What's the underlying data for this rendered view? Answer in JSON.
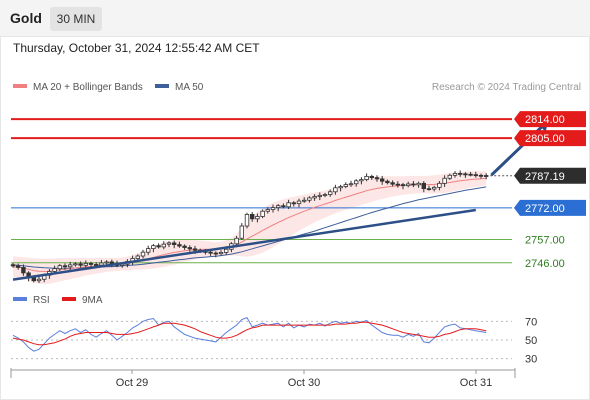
{
  "header": {
    "title": "Gold",
    "timeframe": "30 MIN"
  },
  "timestamp": "Thursday, October 31, 2024 12:55:42 AM CET",
  "legend": {
    "bollinger_label": "MA 20 + Bollinger Bands",
    "ma50_label": "MA 50",
    "copyright": "Research © 2024 Trading Central"
  },
  "rsi_legend": {
    "rsi_label": "RSI",
    "ma_label": "9MA"
  },
  "colors": {
    "resistance": "#e31b1b",
    "support_blue": "#2b6fd4",
    "support_green": "#6ab04c",
    "trend": "#2b4f86",
    "current_price_bg": "#2d2d2d",
    "bollinger_fill": "#fde6e6",
    "ma20": "#f08080",
    "ma50": "#3e5f9a",
    "candle": "#333333",
    "rsi": "#5b7fdc",
    "rsi_ma": "#e31b1b"
  },
  "chart_data": {
    "type": "candlestick",
    "instrument": "Gold",
    "timeframe": "30 MIN",
    "y_range": [
      2735,
      2824
    ],
    "levels": [
      {
        "value": 2814.0,
        "label": "2814.00",
        "kind": "resistance"
      },
      {
        "value": 2805.0,
        "label": "2805.00",
        "kind": "resistance"
      },
      {
        "value": 2787.19,
        "label": "2787.19",
        "kind": "current"
      },
      {
        "value": 2772.0,
        "label": "2772.00",
        "kind": "pivot"
      },
      {
        "value": 2757.0,
        "label": "2757.00",
        "kind": "support"
      },
      {
        "value": 2746.0,
        "label": "2746.00",
        "kind": "support"
      }
    ],
    "x_labels": [
      "Oct 29",
      "Oct 30",
      "Oct 31"
    ],
    "closes": [
      2744.5,
      2743.8,
      2741.2,
      2738.9,
      2737.5,
      2738.2,
      2740.1,
      2741.9,
      2743.2,
      2744.6,
      2744.1,
      2745.0,
      2745.5,
      2744.8,
      2745.7,
      2745.2,
      2744.9,
      2745.9,
      2746.4,
      2745.6,
      2744.7,
      2745.3,
      2746.6,
      2748.0,
      2749.2,
      2751.0,
      2752.7,
      2754.1,
      2753.5,
      2754.8,
      2755.4,
      2754.6,
      2753.9,
      2753.2,
      2752.6,
      2751.9,
      2751.4,
      2751.0,
      2750.6,
      2750.3,
      2750.9,
      2752.4,
      2755.0,
      2757.6,
      2763.4,
      2768.9,
      2766.8,
      2767.9,
      2770.4,
      2771.2,
      2772.1,
      2773.0,
      2772.5,
      2774.4,
      2774.0,
      2775.2,
      2775.6,
      2776.7,
      2777.4,
      2777.9,
      2778.3,
      2779.6,
      2781.5,
      2782.1,
      2783.0,
      2783.4,
      2784.8,
      2785.4,
      2786.9,
      2786.3,
      2785.7,
      2784.6,
      2783.9,
      2783.2,
      2783.0,
      2782.5,
      2783.3,
      2782.9,
      2783.6,
      2781.1,
      2780.9,
      2781.7,
      2783.6,
      2786.0,
      2787.4,
      2788.3,
      2788.1,
      2787.9,
      2787.7,
      2787.4,
      2787.3,
      2787.19
    ],
    "ma20": [
      2744.0,
      2743.9,
      2743.5,
      2742.9,
      2742.3,
      2742.0,
      2741.9,
      2742.0,
      2742.3,
      2742.7,
      2742.9,
      2743.2,
      2743.5,
      2743.8,
      2744.1,
      2744.3,
      2744.5,
      2744.8,
      2745.0,
      2745.1,
      2745.2,
      2745.4,
      2745.7,
      2746.1,
      2746.6,
      2747.2,
      2747.9,
      2748.6,
      2749.2,
      2749.8,
      2750.4,
      2750.9,
      2751.3,
      2751.7,
      2752.0,
      2752.2,
      2752.3,
      2752.4,
      2752.4,
      2752.4,
      2752.6,
      2753.0,
      2753.6,
      2754.5,
      2755.8,
      2757.3,
      2758.6,
      2759.9,
      2761.3,
      2762.6,
      2763.9,
      2765.1,
      2766.2,
      2767.4,
      2768.4,
      2769.4,
      2770.4,
      2771.3,
      2772.2,
      2773.0,
      2773.8,
      2774.6,
      2775.5,
      2776.3,
      2777.1,
      2777.8,
      2778.6,
      2779.3,
      2780.1,
      2780.7,
      2781.2,
      2781.6,
      2781.9,
      2782.2,
      2782.4,
      2782.6,
      2782.8,
      2782.9,
      2783.0,
      2783.0,
      2783.0,
      2783.1,
      2783.3,
      2783.6,
      2784.0,
      2784.4,
      2784.8,
      2785.1,
      2785.4,
      2785.6,
      2785.8,
      2786.0
    ],
    "ma50": [
      2745.0,
      2744.8,
      2744.6,
      2744.3,
      2744.0,
      2743.8,
      2743.6,
      2743.5,
      2743.4,
      2743.4,
      2743.4,
      2743.4,
      2743.5,
      2743.6,
      2743.7,
      2743.8,
      2743.9,
      2744.0,
      2744.1,
      2744.2,
      2744.3,
      2744.5,
      2744.7,
      2744.9,
      2745.1,
      2745.3,
      2745.6,
      2745.9,
      2746.2,
      2746.5,
      2746.8,
      2747.1,
      2747.4,
      2747.7,
      2748.0,
      2748.3,
      2748.5,
      2748.7,
      2748.9,
      2749.1,
      2749.4,
      2749.7,
      2750.1,
      2750.6,
      2751.2,
      2751.9,
      2752.6,
      2753.3,
      2754.0,
      2754.7,
      2755.4,
      2756.1,
      2756.8,
      2757.5,
      2758.2,
      2758.9,
      2759.6,
      2760.3,
      2761.0,
      2761.8,
      2762.6,
      2763.4,
      2764.2,
      2765.0,
      2765.8,
      2766.6,
      2767.4,
      2768.2,
      2769.0,
      2769.8,
      2770.5,
      2771.2,
      2771.9,
      2772.6,
      2773.3,
      2774.0,
      2774.6,
      2775.2,
      2775.8,
      2776.3,
      2776.8,
      2777.3,
      2777.8,
      2778.3,
      2778.8,
      2779.3,
      2779.8,
      2780.3,
      2780.7,
      2781.1,
      2781.5,
      2781.9
    ],
    "band_width": [
      5.0,
      5.0,
      5.2,
      5.5,
      5.8,
      6.0,
      6.0,
      5.9,
      5.7,
      5.5,
      5.2,
      5.0,
      4.7,
      4.4,
      4.1,
      3.9,
      3.7,
      3.5,
      3.3,
      3.2,
      3.1,
      3.1,
      3.2,
      3.5,
      3.9,
      4.4,
      4.9,
      5.3,
      5.6,
      5.8,
      5.9,
      5.8,
      5.6,
      5.3,
      5.0,
      4.6,
      4.2,
      3.9,
      3.6,
      3.4,
      3.4,
      3.6,
      4.2,
      5.2,
      6.8,
      8.5,
      9.4,
      10.0,
      10.5,
      10.6,
      10.5,
      10.2,
      9.8,
      9.3,
      8.8,
      8.3,
      7.8,
      7.4,
      7.0,
      6.7,
      6.4,
      6.2,
      6.1,
      6.0,
      6.0,
      6.0,
      6.0,
      6.0,
      6.0,
      5.9,
      5.7,
      5.4,
      5.1,
      4.8,
      4.6,
      4.4,
      4.3,
      4.2,
      4.1,
      4.1,
      4.2,
      4.3,
      4.4,
      4.5,
      4.5,
      4.4,
      4.3,
      4.1,
      3.9,
      3.7,
      3.5,
      3.3
    ],
    "trendline": {
      "from": [
        0,
        2738.0
      ],
      "to": [
        89,
        2771.0
      ]
    },
    "projection_arrow": {
      "from": [
        92,
        2787.5
      ],
      "to": [
        103,
        2814.0
      ]
    },
    "rsi": {
      "levels": [
        70,
        50,
        30
      ],
      "values": [
        55,
        52,
        48,
        42,
        38,
        40,
        46,
        52,
        56,
        60,
        57,
        60,
        62,
        58,
        61,
        56,
        53,
        57,
        60,
        55,
        50,
        54,
        58,
        63,
        66,
        70,
        72,
        73,
        66,
        69,
        70,
        64,
        60,
        56,
        54,
        52,
        51,
        50,
        49,
        48,
        53,
        58,
        62,
        66,
        72,
        74,
        64,
        66,
        68,
        66,
        67,
        68,
        64,
        68,
        63,
        66,
        64,
        67,
        66,
        68,
        65,
        68,
        70,
        68,
        69,
        68,
        70,
        69,
        71,
        66,
        62,
        58,
        56,
        55,
        55,
        53,
        56,
        54,
        57,
        48,
        47,
        52,
        58,
        64,
        66,
        67,
        63,
        62,
        61,
        60,
        59,
        58
      ],
      "ma": [
        52,
        51,
        50,
        48,
        46,
        45,
        45,
        46,
        47,
        49,
        51,
        54,
        56,
        57,
        58,
        58,
        58,
        58,
        58,
        57,
        56,
        56,
        56,
        57,
        58,
        60,
        62,
        64,
        66,
        68,
        68,
        68,
        67,
        66,
        64,
        62,
        59,
        57,
        55,
        53,
        52,
        52,
        53,
        55,
        58,
        61,
        63,
        64,
        66,
        66,
        66,
        66,
        66,
        66,
        66,
        66,
        66,
        66,
        66,
        66,
        66,
        66,
        67,
        67,
        67,
        68,
        68,
        69,
        69,
        68,
        67,
        66,
        64,
        62,
        60,
        58,
        57,
        56,
        55,
        54,
        53,
        53,
        54,
        56,
        57,
        59,
        61,
        62,
        62,
        62,
        61,
        60
      ]
    }
  }
}
